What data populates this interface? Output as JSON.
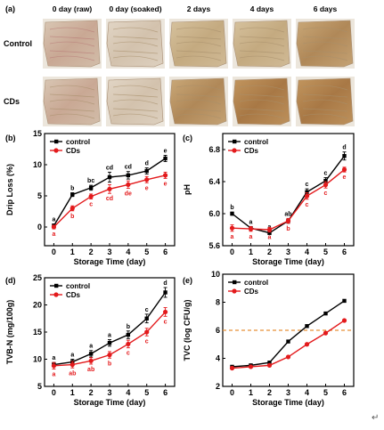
{
  "panel_a": {
    "label": "(a)",
    "columns": [
      "0 day (raw)",
      "0 day (soaked)",
      "2 days",
      "4 days",
      "6 days"
    ],
    "rows": [
      "Control",
      "CDs"
    ]
  },
  "colors": {
    "control": "#000000",
    "cds": "#e31a1c",
    "threshold": "#e69138"
  },
  "corner_mark": "↵",
  "chart_data": [
    {
      "type": "line",
      "label": "(b)",
      "xlabel": "Storage Time (day)",
      "ylabel": "Drip Loss (%)",
      "x": [
        0,
        1,
        2,
        3,
        4,
        5,
        6
      ],
      "xlim": [
        -0.5,
        6.5
      ],
      "ylim": [
        -3,
        15
      ],
      "yticks": [
        0,
        5,
        10,
        15
      ],
      "legend_position": "top-left",
      "series": [
        {
          "name": "control",
          "values": [
            0.2,
            5.2,
            6.3,
            8.0,
            8.3,
            9.0,
            11.0
          ],
          "err": [
            0.3,
            0.3,
            0.4,
            0.8,
            0.6,
            0.5,
            0.5
          ],
          "sig": [
            "a",
            "b",
            "bc",
            "cd",
            "cd",
            "d",
            "e"
          ]
        },
        {
          "name": "CDs",
          "values": [
            0.0,
            3.0,
            4.9,
            6.1,
            6.8,
            7.6,
            8.3
          ],
          "err": [
            0.3,
            0.4,
            0.4,
            0.7,
            0.6,
            0.5,
            0.5
          ],
          "sig": [
            "a",
            "b",
            "c",
            "cd",
            "de",
            "e",
            "e"
          ]
        }
      ]
    },
    {
      "type": "line",
      "label": "(c)",
      "xlabel": "Storage Time (day)",
      "ylabel": "pH",
      "x": [
        0,
        1,
        2,
        3,
        4,
        5,
        6
      ],
      "xlim": [
        -0.5,
        6.5
      ],
      "ylim": [
        5.6,
        7.0
      ],
      "yticks": [
        5.6,
        6.0,
        6.4,
        6.8
      ],
      "legend_position": "top-left",
      "series": [
        {
          "name": "control",
          "values": [
            6.0,
            5.82,
            5.76,
            5.91,
            6.27,
            6.41,
            6.72
          ],
          "err": [
            0.02,
            0.02,
            0.02,
            0.03,
            0.04,
            0.04,
            0.05
          ],
          "sig": [
            "b",
            "a",
            "a",
            "ab",
            "c",
            "c",
            "d"
          ]
        },
        {
          "name": "CDs",
          "values": [
            5.82,
            5.81,
            5.8,
            5.91,
            6.22,
            6.36,
            6.55
          ],
          "err": [
            0.04,
            0.03,
            0.03,
            0.03,
            0.04,
            0.04,
            0.03
          ],
          "sig": [
            "a",
            "a",
            "a",
            "b",
            "c",
            "c",
            "e"
          ]
        }
      ]
    },
    {
      "type": "line",
      "label": "(d)",
      "xlabel": "Storage Time (day)",
      "ylabel": "TVB-N (mg/100g)",
      "x": [
        0,
        1,
        2,
        3,
        4,
        5,
        6
      ],
      "xlim": [
        -0.5,
        6.5
      ],
      "ylim": [
        5,
        25
      ],
      "yticks": [
        5,
        10,
        15,
        20,
        25
      ],
      "legend_position": "top-left",
      "series": [
        {
          "name": "control",
          "values": [
            9.0,
            9.5,
            11.0,
            13.0,
            14.5,
            17.5,
            22.3
          ],
          "err": [
            0.4,
            0.5,
            0.6,
            0.6,
            0.7,
            0.8,
            0.9
          ],
          "sig": [
            "a",
            "a",
            "a",
            "a",
            "b",
            "c",
            "d"
          ]
        },
        {
          "name": "CDs",
          "values": [
            8.8,
            9.0,
            9.7,
            10.8,
            12.8,
            15.0,
            18.7
          ],
          "err": [
            0.6,
            0.6,
            0.6,
            0.6,
            0.7,
            0.7,
            0.8
          ],
          "sig": [
            "a",
            "ab",
            "ab",
            "b",
            "c",
            "c",
            "c"
          ]
        }
      ]
    },
    {
      "type": "line",
      "label": "(e)",
      "xlabel": "Storage Time (day)",
      "ylabel": "TVC (log CFU/g)",
      "x": [
        0,
        1,
        2,
        3,
        4,
        5,
        6
      ],
      "xlim": [
        -0.5,
        6.5
      ],
      "ylim": [
        2,
        10
      ],
      "yticks": [
        2,
        4,
        6,
        8,
        10
      ],
      "legend_position": "top-left",
      "threshold": 6.0,
      "series": [
        {
          "name": "control",
          "values": [
            3.4,
            3.5,
            3.7,
            5.2,
            6.3,
            7.2,
            8.1
          ]
        },
        {
          "name": "CDs",
          "values": [
            3.3,
            3.4,
            3.5,
            4.1,
            5.0,
            5.8,
            6.7
          ]
        }
      ]
    }
  ]
}
